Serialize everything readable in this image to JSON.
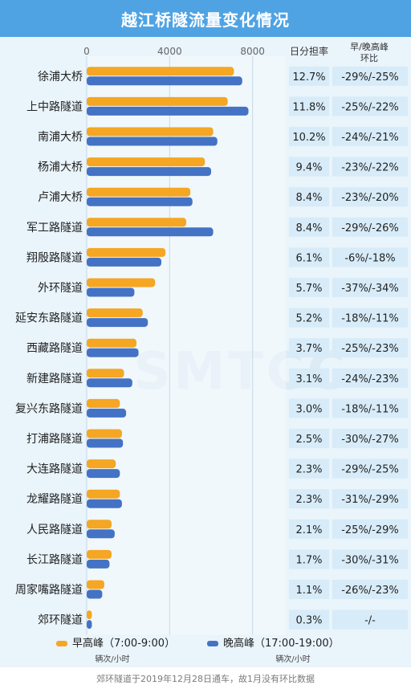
{
  "title": "越江桥隧流量变化情况",
  "columns": {
    "share_header": "日分担率",
    "change_header_line1": "早/晚高峰",
    "change_header_line2": "环比"
  },
  "legend": {
    "morning_label": "早高峰（7:00-9:00）",
    "evening_label": "晚高峰（17:00-19:00）",
    "unit_left": "辆次/小时",
    "unit_right": "辆次/小时"
  },
  "footer": "郊环隧道于2019年12月28日通车，故1月没有环比数据",
  "watermark": "SMTCC",
  "colors": {
    "morning": "#f5a623",
    "evening": "#4472c4",
    "title_bg": "#4fa3e3",
    "panel_bg": "#e9f4fb"
  },
  "chart_data": {
    "type": "bar",
    "orientation": "horizontal",
    "xlim": [
      0,
      9600
    ],
    "x_ticks": [
      0,
      4000,
      8000
    ],
    "x_tick_labels": [
      "0",
      "4000",
      "8000"
    ],
    "grid": true,
    "legend_position": "bottom",
    "categories": [
      "徐浦大桥",
      "上中路隧道",
      "南浦大桥",
      "杨浦大桥",
      "卢浦大桥",
      "军工路隧道",
      "翔殷路隧道",
      "外环隧道",
      "延安东路隧道",
      "西藏路隧道",
      "新建路隧道",
      "复兴东路隧道",
      "打浦路隧道",
      "大连路隧道",
      "龙耀路隧道",
      "人民路隧道",
      "长江路隧道",
      "周家嘴路隧道",
      "郊环隧道"
    ],
    "series": [
      {
        "name": "早高峰（7:00-9:00）",
        "values": [
          7100,
          6800,
          6100,
          5700,
          5000,
          4800,
          3800,
          3300,
          2700,
          2400,
          1800,
          1600,
          1700,
          1400,
          1600,
          1200,
          1200,
          850,
          250
        ]
      },
      {
        "name": "晚高峰（17:00-19:00）",
        "values": [
          7500,
          7800,
          6300,
          6000,
          5100,
          6100,
          3600,
          2300,
          2950,
          2500,
          2200,
          1900,
          1750,
          1600,
          1700,
          1350,
          1100,
          750,
          250
        ]
      }
    ],
    "share": [
      "12.7%",
      "11.8%",
      "10.2%",
      "9.4%",
      "8.4%",
      "8.4%",
      "6.1%",
      "5.7%",
      "5.2%",
      "3.7%",
      "3.1%",
      "3.0%",
      "2.5%",
      "2.3%",
      "2.3%",
      "2.1%",
      "1.7%",
      "1.1%",
      "0.3%"
    ],
    "change": [
      "-29%/-25%",
      "-25%/-22%",
      "-24%/-21%",
      "-23%/-22%",
      "-23%/-20%",
      "-29%/-26%",
      "-6%/-18%",
      "-37%/-34%",
      "-18%/-11%",
      "-25%/-23%",
      "-24%/-23%",
      "-18%/-11%",
      "-30%/-27%",
      "-29%/-25%",
      "-31%/-29%",
      "-25%/-29%",
      "-30%/-31%",
      "-26%/-23%",
      "-/-"
    ]
  }
}
